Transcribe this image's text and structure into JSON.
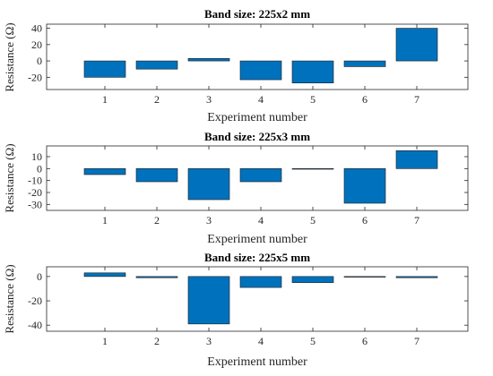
{
  "chart_data": [
    {
      "type": "bar",
      "title": "Band size: 225x2 mm",
      "xlabel": "Experiment number",
      "ylabel": "Resistance (Ω)",
      "categories": [
        "1",
        "2",
        "3",
        "4",
        "5",
        "6",
        "7"
      ],
      "values": [
        -20,
        -10,
        3,
        -23,
        -27,
        -7,
        40
      ],
      "ylim": [
        -35,
        45
      ],
      "yticks": [
        -20,
        0,
        20,
        40
      ],
      "ytick_labels": [
        "-20",
        "0",
        "20",
        "40"
      ],
      "grid": false,
      "colors": {
        "bar": "#0072BD"
      }
    },
    {
      "type": "bar",
      "title": "Band size: 225x3 mm",
      "xlabel": "Experiment number",
      "ylabel": "Resistance (Ω)",
      "categories": [
        "1",
        "2",
        "3",
        "4",
        "5",
        "6",
        "7"
      ],
      "values": [
        -5,
        -11,
        -26,
        -11,
        -0.3,
        -29,
        15
      ],
      "ylim": [
        -35,
        19
      ],
      "yticks": [
        -30,
        -20,
        -10,
        0,
        10
      ],
      "ytick_labels": [
        "-30",
        "-20",
        "-10",
        "0",
        "10"
      ],
      "grid": false,
      "colors": {
        "bar": "#0072BD"
      }
    },
    {
      "type": "bar",
      "title": "Band size: 225x5 mm",
      "xlabel": "Experiment number",
      "ylabel": "Resistance (Ω)",
      "categories": [
        "1",
        "2",
        "3",
        "4",
        "5",
        "6",
        "7"
      ],
      "values": [
        3,
        -1,
        -39,
        -9,
        -5,
        -0.5,
        -1
      ],
      "ylim": [
        -45,
        8
      ],
      "yticks": [
        -40,
        -20,
        0
      ],
      "ytick_labels": [
        "-40",
        "-20",
        "0"
      ],
      "grid": false,
      "colors": {
        "bar": "#0072BD"
      }
    }
  ]
}
